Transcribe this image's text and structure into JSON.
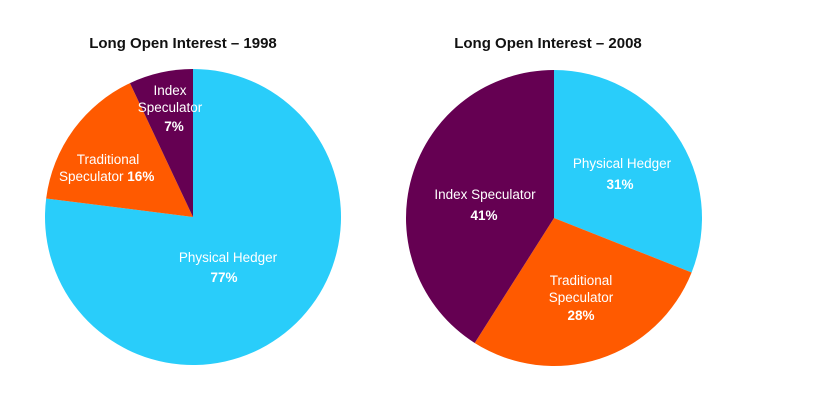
{
  "colors": {
    "physical_hedger": "#29cdfa",
    "traditional_speculator": "#ff5a00",
    "index_speculator": "#650052",
    "label_text": "#ffffff"
  },
  "chart_data": [
    {
      "type": "pie",
      "title": "Long Open Interest – 1998",
      "start_angle_deg": 0,
      "direction": "clockwise",
      "slices": [
        {
          "name": "Physical Hedger",
          "value": 77,
          "label": "77%",
          "color": "#29cdfa"
        },
        {
          "name": "Traditional Speculator",
          "value": 16,
          "label": "16%",
          "color": "#ff5a00"
        },
        {
          "name": "Index Speculator",
          "value": 7,
          "label": "7%",
          "color": "#650052"
        }
      ]
    },
    {
      "type": "pie",
      "title": "Long Open Interest – 2008",
      "start_angle_deg": 0,
      "direction": "clockwise",
      "slices": [
        {
          "name": "Physical Hedger",
          "value": 31,
          "label": "31%",
          "color": "#29cdfa"
        },
        {
          "name": "Traditional Speculator",
          "value": 28,
          "label": "28%",
          "color": "#ff5a00"
        },
        {
          "name": "Index Speculator",
          "value": 41,
          "label": "41%",
          "color": "#650052"
        }
      ]
    }
  ]
}
